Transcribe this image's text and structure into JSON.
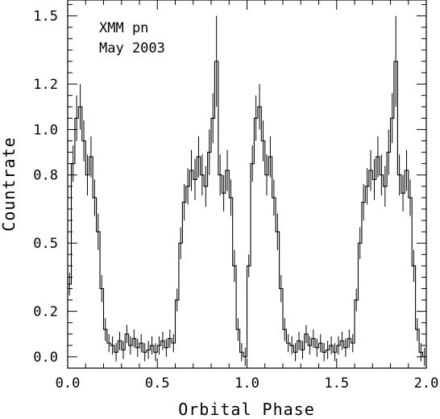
{
  "chart_data": {
    "type": "line",
    "title": "",
    "xlabel": "Orbital Phase",
    "ylabel": "Countrate",
    "xlim": [
      0.0,
      2.0
    ],
    "ylim": [
      -0.05,
      1.57
    ],
    "x_ticks": [
      {
        "value": 0.0,
        "label": "0.0"
      },
      {
        "value": 0.5,
        "label": "0.5"
      },
      {
        "value": 1.0,
        "label": "1.0"
      },
      {
        "value": 1.5,
        "label": "1.5"
      },
      {
        "value": 2.0,
        "label": "2.0"
      }
    ],
    "y_ticks": [
      {
        "value": 0.0,
        "label": "0.0"
      },
      {
        "value": 0.2,
        "label": "0.2"
      },
      {
        "value": 0.5,
        "label": "0.5"
      },
      {
        "value": 0.8,
        "label": "0.8"
      },
      {
        "value": 1.0,
        "label": "1.0"
      },
      {
        "value": 1.2,
        "label": "1.2"
      },
      {
        "value": 1.5,
        "label": "1.5"
      }
    ],
    "annotations": [
      "XMM pn",
      "May 2003"
    ],
    "grid": false,
    "series": [
      {
        "x": [
          0.01,
          0.03,
          0.05,
          0.07,
          0.09,
          0.11,
          0.13,
          0.15,
          0.17,
          0.19,
          0.21,
          0.23,
          0.25,
          0.27,
          0.29,
          0.31,
          0.33,
          0.35,
          0.37,
          0.39,
          0.41,
          0.43,
          0.45,
          0.47,
          0.49,
          0.51,
          0.53,
          0.55,
          0.57,
          0.59,
          0.61,
          0.63,
          0.65,
          0.67,
          0.69,
          0.71,
          0.73,
          0.75,
          0.77,
          0.79,
          0.81,
          0.83,
          0.85,
          0.87,
          0.89,
          0.91,
          0.93,
          0.95,
          0.97,
          0.99,
          1.01,
          1.03,
          1.05,
          1.07,
          1.09,
          1.11,
          1.13,
          1.15,
          1.17,
          1.19,
          1.21,
          1.23,
          1.25,
          1.27,
          1.29,
          1.31,
          1.33,
          1.35,
          1.37,
          1.39,
          1.41,
          1.43,
          1.45,
          1.47,
          1.49,
          1.51,
          1.53,
          1.55,
          1.57,
          1.59,
          1.61,
          1.63,
          1.65,
          1.67,
          1.69,
          1.71,
          1.73,
          1.75,
          1.77,
          1.79,
          1.81,
          1.83,
          1.85,
          1.87,
          1.89,
          1.91,
          1.93,
          1.95,
          1.97,
          1.99
        ],
        "y": [
          0.32,
          0.85,
          1.05,
          1.1,
          0.95,
          0.8,
          0.88,
          0.7,
          0.55,
          0.3,
          0.12,
          0.06,
          0.05,
          0.02,
          0.07,
          0.03,
          0.1,
          0.05,
          0.08,
          0.04,
          0.06,
          0.02,
          0.03,
          0.05,
          0.02,
          0.05,
          0.07,
          0.04,
          0.08,
          0.06,
          0.25,
          0.5,
          0.68,
          0.75,
          0.82,
          0.78,
          0.88,
          0.8,
          0.75,
          0.9,
          1.05,
          1.3,
          0.8,
          0.72,
          0.82,
          0.7,
          0.4,
          0.12,
          0.02,
          0.0,
          0.4,
          0.85,
          1.05,
          1.1,
          0.95,
          0.8,
          0.88,
          0.7,
          0.55,
          0.3,
          0.12,
          0.06,
          0.05,
          0.02,
          0.07,
          0.03,
          0.1,
          0.05,
          0.08,
          0.04,
          0.06,
          0.02,
          0.03,
          0.05,
          0.02,
          0.05,
          0.07,
          0.04,
          0.08,
          0.06,
          0.25,
          0.5,
          0.68,
          0.75,
          0.82,
          0.78,
          0.88,
          0.8,
          0.75,
          0.9,
          1.05,
          1.3,
          0.8,
          0.72,
          0.82,
          0.7,
          0.4,
          0.12,
          0.02,
          0.0
        ],
        "err": [
          0.05,
          0.08,
          0.1,
          0.1,
          0.09,
          0.09,
          0.09,
          0.08,
          0.08,
          0.06,
          0.05,
          0.04,
          0.04,
          0.04,
          0.04,
          0.04,
          0.04,
          0.04,
          0.04,
          0.04,
          0.04,
          0.04,
          0.04,
          0.04,
          0.04,
          0.04,
          0.04,
          0.04,
          0.04,
          0.04,
          0.05,
          0.07,
          0.08,
          0.08,
          0.09,
          0.09,
          0.09,
          0.09,
          0.09,
          0.1,
          0.11,
          0.2,
          0.09,
          0.08,
          0.09,
          0.08,
          0.07,
          0.05,
          0.04,
          0.04,
          0.05,
          0.08,
          0.1,
          0.1,
          0.09,
          0.09,
          0.09,
          0.08,
          0.08,
          0.06,
          0.05,
          0.04,
          0.04,
          0.04,
          0.04,
          0.04,
          0.04,
          0.04,
          0.04,
          0.04,
          0.04,
          0.04,
          0.04,
          0.04,
          0.04,
          0.04,
          0.04,
          0.04,
          0.04,
          0.04,
          0.05,
          0.07,
          0.08,
          0.08,
          0.09,
          0.09,
          0.09,
          0.09,
          0.09,
          0.1,
          0.11,
          0.2,
          0.09,
          0.08,
          0.09,
          0.08,
          0.07,
          0.05,
          0.04,
          0.04
        ]
      }
    ]
  }
}
